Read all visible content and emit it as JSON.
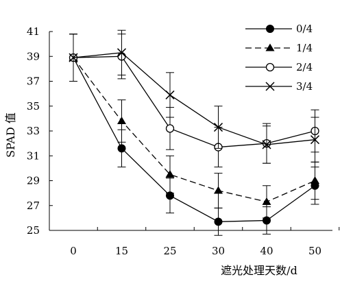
{
  "chart_data": {
    "type": "line",
    "title": "",
    "xlabel": "遮光处理天数/d",
    "ylabel": "SPAD 值",
    "categories": [
      "0",
      "15",
      "25",
      "30",
      "40",
      "50"
    ],
    "ylim": [
      25,
      41
    ],
    "yticks": [
      25,
      27,
      29,
      31,
      33,
      35,
      37,
      39,
      41
    ],
    "grid": false,
    "legend_position": "top-right",
    "error_bars": true,
    "series": [
      {
        "name": "0/4",
        "marker": "filled-circle",
        "line_style": "solid",
        "values": [
          38.9,
          31.6,
          27.8,
          25.7,
          25.8,
          28.6
        ],
        "errors": [
          1.9,
          1.5,
          1.4,
          1.1,
          1.1,
          1.5
        ],
        "color": "#000000"
      },
      {
        "name": "1/4",
        "marker": "filled-triangle",
        "line_style": "dashed",
        "values": [
          38.9,
          33.8,
          29.5,
          28.2,
          27.3,
          29.0
        ],
        "errors": [
          1.9,
          1.7,
          1.5,
          1.4,
          1.3,
          1.5
        ],
        "color": "#000000"
      },
      {
        "name": "2/4",
        "marker": "open-circle",
        "line_style": "solid",
        "values": [
          38.9,
          39.0,
          33.2,
          31.7,
          32.0,
          33.0
        ],
        "errors": [
          1.9,
          1.8,
          1.7,
          1.6,
          1.6,
          1.7
        ],
        "color": "#000000"
      },
      {
        "name": "3/4",
        "marker": "x",
        "line_style": "solid",
        "values": [
          38.9,
          39.3,
          35.9,
          33.3,
          31.9,
          32.3
        ],
        "errors": [
          1.9,
          1.8,
          1.8,
          1.7,
          1.5,
          1.8
        ],
        "color": "#000000"
      }
    ]
  }
}
